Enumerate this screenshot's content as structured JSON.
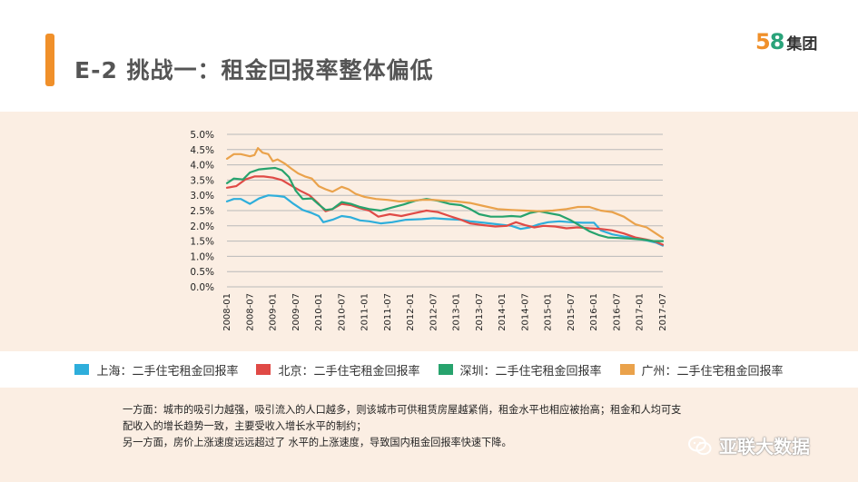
{
  "slide": {
    "title": "E-2 挑战一：租金回报率整体偏低",
    "brand": {
      "number_5": "5",
      "number_8": "8",
      "name": "集团"
    }
  },
  "chart_data": {
    "type": "line",
    "title": "",
    "xlabel": "",
    "ylabel": "",
    "ylim": [
      0.0,
      5.0
    ],
    "y_ticks": [
      "5.0%",
      "4.5%",
      "4.0%",
      "3.5%",
      "3.0%",
      "2.5%",
      "2.0%",
      "1.5%",
      "1.0%",
      "0.5%",
      "0.0%"
    ],
    "x_ticks": [
      "2008-01",
      "2008-07",
      "2009-01",
      "2009-07",
      "2010-01",
      "2010-07",
      "2011-01",
      "2011-07",
      "2012-01",
      "2012-07",
      "2013-01",
      "2013-07",
      "2014-01",
      "2014-07",
      "2015-01",
      "2015-07",
      "2016-01",
      "2016-07",
      "2017-01",
      "2017-07"
    ],
    "x_range": [
      0,
      19
    ],
    "series": [
      {
        "name": "上海：二手住宅租金回报率",
        "color": "#2eaedb",
        "points": [
          [
            0,
            2.8
          ],
          [
            0.3,
            2.88
          ],
          [
            0.6,
            2.88
          ],
          [
            1.0,
            2.72
          ],
          [
            1.4,
            2.9
          ],
          [
            1.8,
            3.0
          ],
          [
            2.2,
            2.98
          ],
          [
            2.5,
            2.95
          ],
          [
            2.9,
            2.72
          ],
          [
            3.3,
            2.52
          ],
          [
            3.7,
            2.42
          ],
          [
            4.0,
            2.32
          ],
          [
            4.2,
            2.12
          ],
          [
            4.6,
            2.2
          ],
          [
            5.0,
            2.32
          ],
          [
            5.4,
            2.28
          ],
          [
            5.8,
            2.18
          ],
          [
            6.2,
            2.15
          ],
          [
            6.7,
            2.08
          ],
          [
            7.2,
            2.12
          ],
          [
            7.8,
            2.2
          ],
          [
            8.5,
            2.22
          ],
          [
            9.0,
            2.25
          ],
          [
            9.6,
            2.22
          ],
          [
            10.2,
            2.2
          ],
          [
            10.6,
            2.15
          ],
          [
            11.2,
            2.1
          ],
          [
            11.8,
            2.05
          ],
          [
            12.4,
            2.0
          ],
          [
            12.8,
            1.9
          ],
          [
            13.2,
            1.95
          ],
          [
            13.6,
            2.05
          ],
          [
            14.0,
            2.12
          ],
          [
            14.5,
            2.15
          ],
          [
            15.0,
            2.12
          ],
          [
            15.5,
            2.1
          ],
          [
            16.0,
            2.1
          ],
          [
            16.3,
            1.85
          ],
          [
            16.8,
            1.72
          ],
          [
            17.3,
            1.65
          ],
          [
            17.8,
            1.6
          ],
          [
            18.3,
            1.52
          ],
          [
            18.7,
            1.45
          ],
          [
            19,
            1.35
          ]
        ]
      },
      {
        "name": "北京：二手住宅租金回报率",
        "color": "#e04a46",
        "points": [
          [
            0,
            3.25
          ],
          [
            0.4,
            3.3
          ],
          [
            0.8,
            3.52
          ],
          [
            1.2,
            3.62
          ],
          [
            1.6,
            3.62
          ],
          [
            2.0,
            3.58
          ],
          [
            2.4,
            3.5
          ],
          [
            2.8,
            3.32
          ],
          [
            3.2,
            3.15
          ],
          [
            3.6,
            3.0
          ],
          [
            4.0,
            2.72
          ],
          [
            4.3,
            2.48
          ],
          [
            4.6,
            2.55
          ],
          [
            5.0,
            2.72
          ],
          [
            5.4,
            2.68
          ],
          [
            5.8,
            2.58
          ],
          [
            6.2,
            2.5
          ],
          [
            6.6,
            2.3
          ],
          [
            7.1,
            2.38
          ],
          [
            7.6,
            2.32
          ],
          [
            8.2,
            2.42
          ],
          [
            8.7,
            2.5
          ],
          [
            9.2,
            2.45
          ],
          [
            9.7,
            2.32
          ],
          [
            10.2,
            2.2
          ],
          [
            10.6,
            2.08
          ],
          [
            11.2,
            2.02
          ],
          [
            11.7,
            1.98
          ],
          [
            12.2,
            2.0
          ],
          [
            12.6,
            2.12
          ],
          [
            13.0,
            2.02
          ],
          [
            13.4,
            1.95
          ],
          [
            13.8,
            2.0
          ],
          [
            14.3,
            1.98
          ],
          [
            14.8,
            1.92
          ],
          [
            15.3,
            1.95
          ],
          [
            15.8,
            1.92
          ],
          [
            16.3,
            1.9
          ],
          [
            16.8,
            1.85
          ],
          [
            17.3,
            1.75
          ],
          [
            17.8,
            1.62
          ],
          [
            18.3,
            1.55
          ],
          [
            18.7,
            1.48
          ],
          [
            19,
            1.38
          ]
        ]
      },
      {
        "name": "深圳：二手住宅租金回报率",
        "color": "#27a36d",
        "points": [
          [
            0,
            3.4
          ],
          [
            0.3,
            3.55
          ],
          [
            0.7,
            3.52
          ],
          [
            1.0,
            3.75
          ],
          [
            1.4,
            3.85
          ],
          [
            1.8,
            3.88
          ],
          [
            2.1,
            3.9
          ],
          [
            2.4,
            3.82
          ],
          [
            2.7,
            3.6
          ],
          [
            3.0,
            3.15
          ],
          [
            3.3,
            2.88
          ],
          [
            3.7,
            2.9
          ],
          [
            4.0,
            2.7
          ],
          [
            4.3,
            2.52
          ],
          [
            4.6,
            2.55
          ],
          [
            5.0,
            2.78
          ],
          [
            5.4,
            2.72
          ],
          [
            5.8,
            2.62
          ],
          [
            6.2,
            2.55
          ],
          [
            6.7,
            2.5
          ],
          [
            7.2,
            2.6
          ],
          [
            7.7,
            2.7
          ],
          [
            8.2,
            2.82
          ],
          [
            8.7,
            2.88
          ],
          [
            9.2,
            2.82
          ],
          [
            9.7,
            2.72
          ],
          [
            10.2,
            2.68
          ],
          [
            10.6,
            2.55
          ],
          [
            11.0,
            2.38
          ],
          [
            11.5,
            2.3
          ],
          [
            12.0,
            2.3
          ],
          [
            12.4,
            2.32
          ],
          [
            12.8,
            2.3
          ],
          [
            13.2,
            2.42
          ],
          [
            13.6,
            2.48
          ],
          [
            14.0,
            2.42
          ],
          [
            14.5,
            2.35
          ],
          [
            15.0,
            2.18
          ],
          [
            15.4,
            2.0
          ],
          [
            15.8,
            1.82
          ],
          [
            16.2,
            1.7
          ],
          [
            16.6,
            1.62
          ],
          [
            17.1,
            1.6
          ],
          [
            17.6,
            1.58
          ],
          [
            18.1,
            1.55
          ],
          [
            18.6,
            1.5
          ],
          [
            19,
            1.5
          ]
        ]
      },
      {
        "name": "广州：二手住宅租金回报率",
        "color": "#eaa24b",
        "points": [
          [
            0,
            4.2
          ],
          [
            0.3,
            4.35
          ],
          [
            0.6,
            4.35
          ],
          [
            1.0,
            4.28
          ],
          [
            1.2,
            4.32
          ],
          [
            1.35,
            4.55
          ],
          [
            1.55,
            4.4
          ],
          [
            1.8,
            4.35
          ],
          [
            2.0,
            4.12
          ],
          [
            2.2,
            4.18
          ],
          [
            2.5,
            4.05
          ],
          [
            2.8,
            3.88
          ],
          [
            3.1,
            3.72
          ],
          [
            3.4,
            3.62
          ],
          [
            3.7,
            3.55
          ],
          [
            4.0,
            3.3
          ],
          [
            4.3,
            3.2
          ],
          [
            4.6,
            3.12
          ],
          [
            5.0,
            3.28
          ],
          [
            5.3,
            3.2
          ],
          [
            5.6,
            3.05
          ],
          [
            6.0,
            2.95
          ],
          [
            6.5,
            2.88
          ],
          [
            7.0,
            2.85
          ],
          [
            7.5,
            2.8
          ],
          [
            8.0,
            2.82
          ],
          [
            8.5,
            2.85
          ],
          [
            9.0,
            2.85
          ],
          [
            9.5,
            2.82
          ],
          [
            10.0,
            2.8
          ],
          [
            10.6,
            2.75
          ],
          [
            11.2,
            2.65
          ],
          [
            11.8,
            2.55
          ],
          [
            12.4,
            2.52
          ],
          [
            13.0,
            2.5
          ],
          [
            13.6,
            2.48
          ],
          [
            14.2,
            2.5
          ],
          [
            14.8,
            2.55
          ],
          [
            15.3,
            2.62
          ],
          [
            15.8,
            2.62
          ],
          [
            16.3,
            2.5
          ],
          [
            16.8,
            2.45
          ],
          [
            17.3,
            2.3
          ],
          [
            17.8,
            2.05
          ],
          [
            18.3,
            1.95
          ],
          [
            18.7,
            1.75
          ],
          [
            19,
            1.6
          ]
        ]
      }
    ]
  },
  "legend": [
    {
      "label": "上海：二手住宅租金回报率",
      "color": "#2eaedb"
    },
    {
      "label": "北京：二手住宅租金回报率",
      "color": "#e04a46"
    },
    {
      "label": "深圳：二手住宅租金回报率",
      "color": "#27a36d"
    },
    {
      "label": "广州：二手住宅租金回报率",
      "color": "#eaa24b"
    }
  ],
  "notes": {
    "line1": "一方面：城市的吸引力越强，吸引流入的人口越多，则该城市可供租赁房屋越紧俏，租金水平也相应被抬高；租金和人均可支",
    "line2": "配收入的增长趋势一致，主要受收入增长水平的制约；",
    "line3": "另一方面，房价上涨速度远远超过了 水平的上涨速度，导致国内租金回报率快速下降。"
  },
  "watermark": {
    "text": "亚联大数据",
    "icon": "wechat-icon"
  }
}
